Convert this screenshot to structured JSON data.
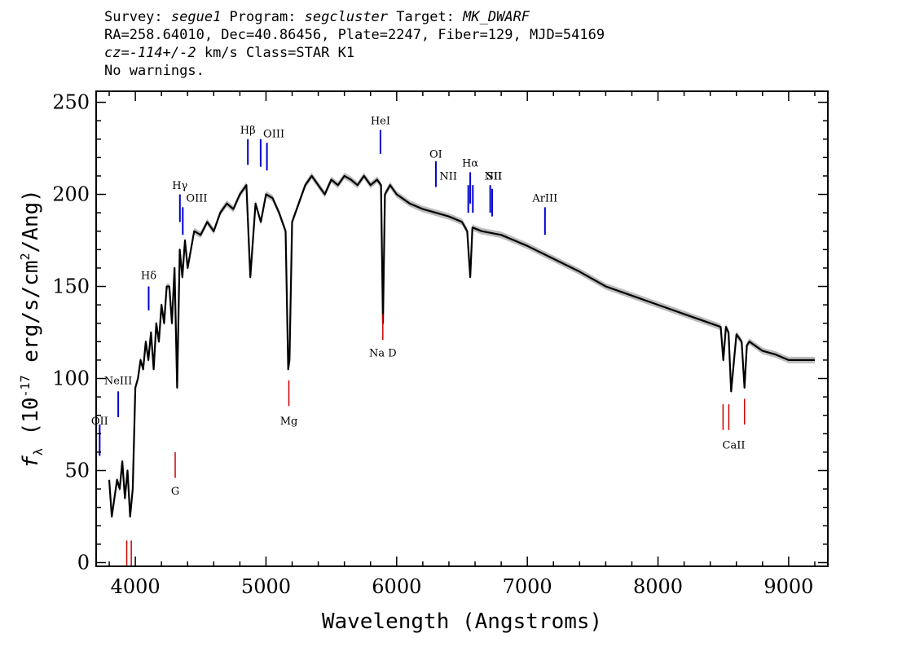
{
  "header": {
    "l1": {
      "a": "Survey: ",
      "survey": "segue1",
      "b": " Program: ",
      "program": "segcluster",
      "c": " Target: ",
      "target": "MK_DWARF"
    },
    "l2": "RA=258.64010, Dec=40.86456, Plate=2247, Fiber=129, MJD=54169",
    "l3": {
      "cz": "cz=-114+/-2",
      "rest": " km/s Class=STAR K1"
    },
    "l4": "No warnings."
  },
  "colors": {
    "flux": "#000000",
    "error_band": "#bdbdbd",
    "emission": "#0000cc",
    "absorption": "#cc0000",
    "frame": "#000000"
  },
  "chart_data": {
    "type": "line",
    "title": "",
    "xlabel": "Wavelength (Angstroms)",
    "ylabel": "f_λ (10^-17 erg/s/cm^2/Ang)",
    "xlim": [
      3700,
      9300
    ],
    "ylim": [
      -2,
      256
    ],
    "x_ticks": [
      4000,
      5000,
      6000,
      7000,
      8000,
      9000
    ],
    "y_ticks": [
      0,
      50,
      100,
      150,
      200,
      250
    ],
    "grid": false,
    "series": [
      {
        "x": [
          3800,
          3820,
          3840,
          3860,
          3880,
          3900,
          3920,
          3940,
          3960,
          3980,
          4000,
          4020,
          4040,
          4060,
          4080,
          4100,
          4120,
          4140,
          4160,
          4180,
          4200,
          4220,
          4240,
          4260,
          4280,
          4300,
          4320,
          4340,
          4360,
          4380,
          4400,
          4450,
          4500,
          4550,
          4600,
          4650,
          4700,
          4750,
          4800,
          4850,
          4880,
          4920,
          4960,
          5000,
          5050,
          5100,
          5150,
          5170,
          5180,
          5200,
          5250,
          5300,
          5350,
          5400,
          5450,
          5500,
          5550,
          5600,
          5650,
          5700,
          5750,
          5800,
          5850,
          5880,
          5895,
          5910,
          5950,
          6000,
          6100,
          6200,
          6300,
          6400,
          6500,
          6540,
          6563,
          6580,
          6650,
          6800,
          7000,
          7200,
          7400,
          7600,
          7800,
          8000,
          8200,
          8400,
          8480,
          8500,
          8520,
          8540,
          8560,
          8600,
          8640,
          8662,
          8680,
          8700,
          8800,
          8900,
          9000,
          9100,
          9200
        ],
        "y": [
          45,
          25,
          35,
          45,
          40,
          55,
          35,
          50,
          25,
          40,
          95,
          100,
          110,
          105,
          120,
          110,
          125,
          105,
          130,
          120,
          140,
          130,
          150,
          150,
          130,
          160,
          95,
          170,
          155,
          175,
          160,
          180,
          178,
          185,
          180,
          190,
          195,
          192,
          200,
          205,
          155,
          195,
          185,
          200,
          198,
          190,
          180,
          105,
          110,
          185,
          195,
          205,
          210,
          205,
          200,
          208,
          205,
          210,
          208,
          205,
          210,
          205,
          208,
          205,
          130,
          200,
          205,
          200,
          195,
          192,
          190,
          188,
          185,
          180,
          155,
          182,
          180,
          178,
          172,
          165,
          158,
          150,
          145,
          140,
          135,
          130,
          128,
          110,
          128,
          125,
          93,
          124,
          120,
          95,
          118,
          120,
          115,
          113,
          110,
          110,
          110
        ]
      }
    ],
    "emission_lines": [
      {
        "name": "OII",
        "wave": 3727,
        "y0": 58,
        "y1": 75
      },
      {
        "name": "NeIII",
        "wave": 3869,
        "y0": 79,
        "y1": 93
      },
      {
        "name": "Hδ",
        "wave": 4102,
        "y0": 137,
        "y1": 150
      },
      {
        "name": "Hγ",
        "wave": 4341,
        "y0": 185,
        "y1": 200
      },
      {
        "name": "OIII",
        "wave": 4363,
        "y0": 178,
        "y1": 193
      },
      {
        "name": "Hβ",
        "wave": 4861,
        "y0": 216,
        "y1": 230
      },
      {
        "name": "OIII",
        "wave": 4959,
        "y0": 215,
        "y1": 230
      },
      {
        "name": "OIII",
        "wave": 5007,
        "y0": 213,
        "y1": 228
      },
      {
        "name": "HeI",
        "wave": 5876,
        "y0": 222,
        "y1": 235
      },
      {
        "name": "OI",
        "wave": 6300,
        "y0": 204,
        "y1": 218
      },
      {
        "name": "NII",
        "wave": 6548,
        "y0": 190,
        "y1": 205
      },
      {
        "name": "Hα",
        "wave": 6563,
        "y0": 195,
        "y1": 212
      },
      {
        "name": "NII",
        "wave": 6583,
        "y0": 190,
        "y1": 205
      },
      {
        "name": "SII",
        "wave": 6716,
        "y0": 190,
        "y1": 205
      },
      {
        "name": "SII",
        "wave": 6731,
        "y0": 188,
        "y1": 203
      },
      {
        "name": "ArIII",
        "wave": 7135,
        "y0": 178,
        "y1": 193
      }
    ],
    "absorption_lines": [
      {
        "name": "",
        "wave": 3934,
        "y0": -2,
        "y1": 12
      },
      {
        "name": "",
        "wave": 3969,
        "y0": -2,
        "y1": 12
      },
      {
        "name": "G",
        "wave": 4305,
        "y0": 46,
        "y1": 60
      },
      {
        "name": "Mg",
        "wave": 5175,
        "y0": 85,
        "y1": 99
      },
      {
        "name": "Na D",
        "wave": 5894,
        "y0": 121,
        "y1": 135
      },
      {
        "name": "",
        "wave": 8498,
        "y0": 72,
        "y1": 86
      },
      {
        "name": "CaII",
        "wave": 8542,
        "y0": 72,
        "y1": 86
      },
      {
        "name": "",
        "wave": 8662,
        "y0": 75,
        "y1": 89
      }
    ],
    "line_labels": [
      {
        "text": "OII",
        "wave": 3727,
        "y": 75
      },
      {
        "text": "NeIII",
        "wave": 3869,
        "y": 97
      },
      {
        "text": "Hδ",
        "wave": 4102,
        "y": 154
      },
      {
        "text": "Hγ",
        "wave": 4341,
        "y": 203
      },
      {
        "text": "OIII",
        "wave": 4470,
        "y": 196
      },
      {
        "text": "Hβ",
        "wave": 4861,
        "y": 233
      },
      {
        "text": "OIII",
        "wave": 5060,
        "y": 231
      },
      {
        "text": "HeI",
        "wave": 5876,
        "y": 238
      },
      {
        "text": "OI",
        "wave": 6300,
        "y": 220
      },
      {
        "text": "NII",
        "wave": 6395,
        "y": 208
      },
      {
        "text": "Hα",
        "wave": 6563,
        "y": 215
      },
      {
        "text": "NII",
        "wave": 6740,
        "y": 208
      },
      {
        "text": "SII",
        "wave": 6745,
        "y": 208
      },
      {
        "text": "ArIII",
        "wave": 7135,
        "y": 196
      },
      {
        "text": "G",
        "wave": 4305,
        "y": 37
      },
      {
        "text": "Mg",
        "wave": 5175,
        "y": 75
      },
      {
        "text": "Na D",
        "wave": 5894,
        "y": 112
      },
      {
        "text": "CaII",
        "wave": 8580,
        "y": 62
      }
    ]
  }
}
